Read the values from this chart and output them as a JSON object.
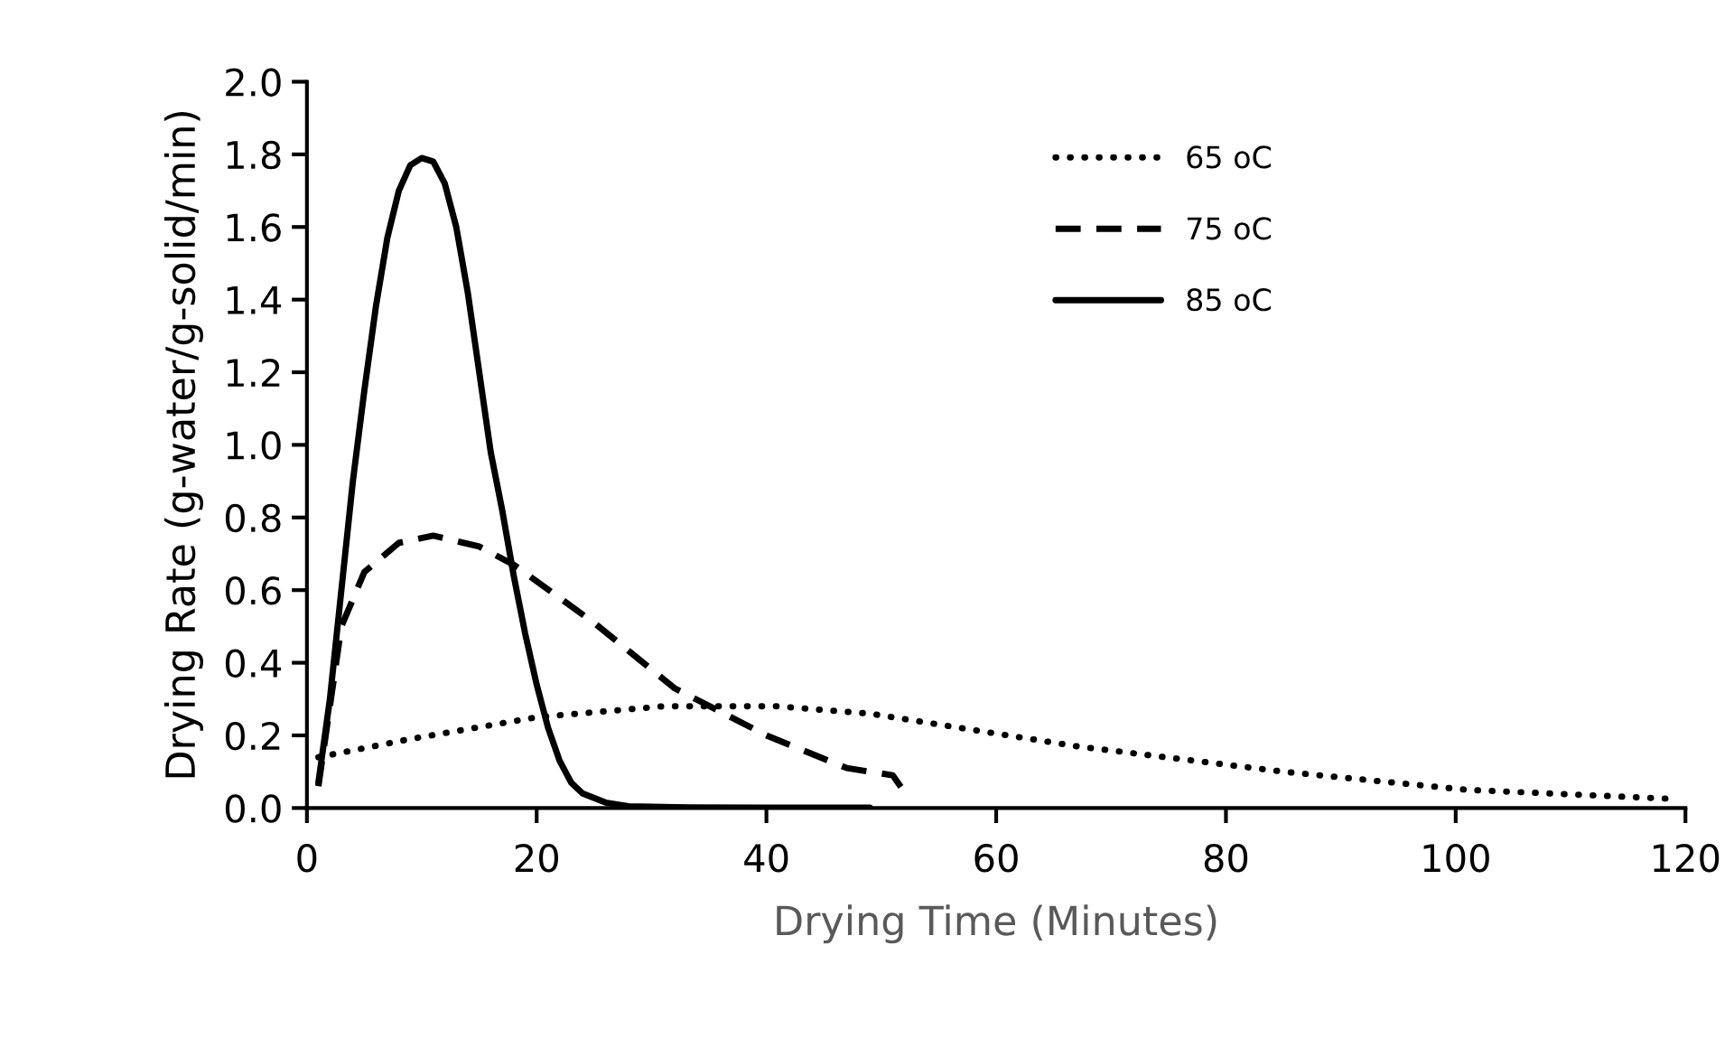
{
  "chart_data": {
    "type": "line",
    "xlabel": "Drying Time (Minutes)",
    "ylabel": "Drying Rate (g-water/g-solid/min)",
    "xlim": [
      0,
      120
    ],
    "xticks": [
      0,
      20,
      40,
      60,
      80,
      100,
      120
    ],
    "ylim": [
      0,
      2.0
    ],
    "yticks": [
      {
        "value": 0,
        "label": "0.0"
      },
      {
        "value": 0.2,
        "label": "0.2"
      },
      {
        "value": 0.4,
        "label": "0.4"
      },
      {
        "value": 0.6,
        "label": "0.6"
      },
      {
        "value": 0.8,
        "label": "0.8"
      },
      {
        "value": 1.0,
        "label": "1.0"
      },
      {
        "value": 1.2,
        "label": "1.2"
      },
      {
        "value": 1.4,
        "label": "1.4"
      },
      {
        "value": 1.6,
        "label": "1.6"
      },
      {
        "value": 1.8,
        "label": "1.8"
      },
      {
        "value": 2.0,
        "label": "2.0"
      }
    ],
    "grid": false,
    "legend": "top right",
    "marker": "none",
    "series": [
      {
        "name": "65 oC",
        "color": "#000000",
        "line_style": "dotted",
        "x": [
          1,
          9,
          20,
          31,
          41,
          49,
          57,
          67,
          85,
          101,
          119
        ],
        "values": [
          0.14,
          0.19,
          0.25,
          0.28,
          0.28,
          0.26,
          0.22,
          0.17,
          0.1,
          0.05,
          0.025
        ]
      },
      {
        "name": "75 oC",
        "color": "#000000",
        "line_style": "dashed",
        "x": [
          1,
          3,
          5,
          8,
          11,
          15,
          18,
          25,
          32,
          40,
          47,
          51,
          52
        ],
        "values": [
          0.06,
          0.5,
          0.65,
          0.73,
          0.75,
          0.72,
          0.67,
          0.51,
          0.33,
          0.2,
          0.11,
          0.09,
          0.045
        ]
      },
      {
        "name": "85 oC",
        "color": "#000000",
        "line_style": "solid",
        "x": [
          1,
          2,
          3,
          4,
          5,
          6,
          7,
          8,
          9,
          10,
          11,
          12,
          13,
          14,
          15,
          16,
          17,
          18,
          19,
          20,
          21,
          22,
          23,
          24,
          26,
          28,
          32,
          40,
          49
        ],
        "values": [
          0.07,
          0.3,
          0.6,
          0.9,
          1.15,
          1.38,
          1.57,
          1.7,
          1.77,
          1.79,
          1.78,
          1.72,
          1.6,
          1.42,
          1.2,
          0.98,
          0.82,
          0.64,
          0.48,
          0.34,
          0.22,
          0.13,
          0.07,
          0.04,
          0.015,
          0.005,
          0.002,
          0.001,
          0.001
        ]
      }
    ]
  }
}
